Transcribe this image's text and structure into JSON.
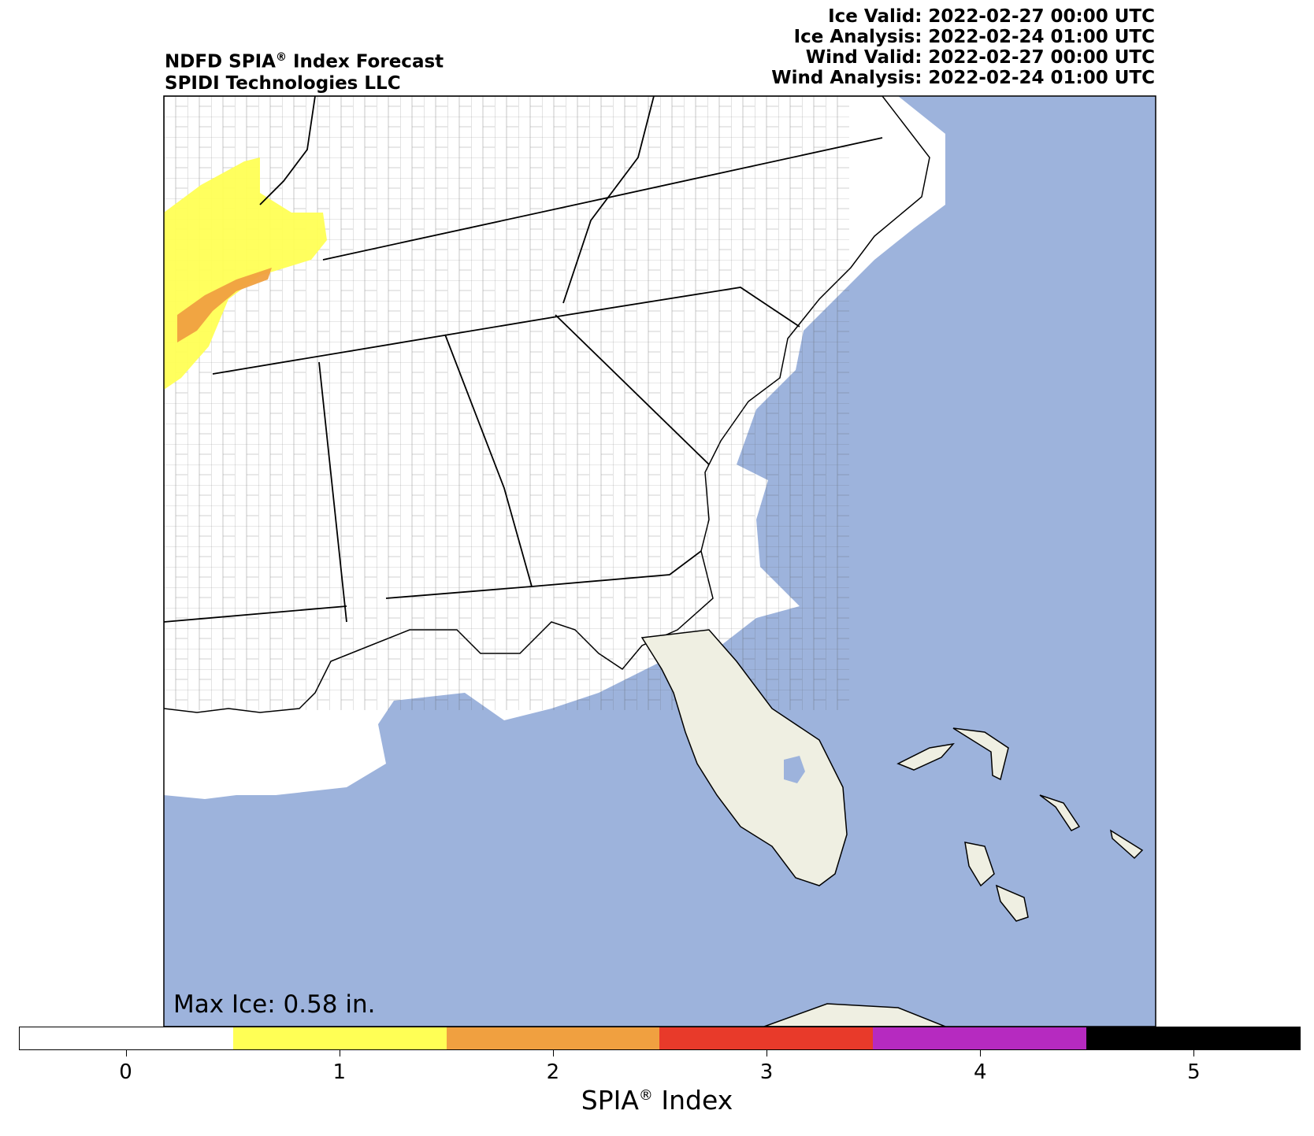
{
  "title": {
    "line1_prefix": "NDFD SPIA",
    "line1_mark": "®",
    "line1_suffix": " Index Forecast",
    "line2": "SPIDI Technologies LLC"
  },
  "validity": {
    "ice_valid": "Ice Valid: 2022-02-27 00:00 UTC",
    "ice_analysis": "Ice Analysis: 2022-02-24 01:00 UTC",
    "wind_valid": "Wind Valid: 2022-02-27 00:00 UTC",
    "wind_analysis": "Wind Analysis: 2022-02-24 01:00 UTC"
  },
  "max_ice": "Max Ice: 0.58 in.",
  "colorbar": {
    "label_prefix": "SPIA",
    "label_mark": "®",
    "label_suffix": " Index",
    "ticks": [
      "0",
      "1",
      "2",
      "3",
      "4",
      "5"
    ],
    "colors": [
      "#ffffff",
      "#ffff55",
      "#f0a040",
      "#e83a2a",
      "#b62ac0",
      "#000000"
    ]
  },
  "map_colors": {
    "water": "#9db3dc",
    "land": "#ffffff",
    "florida_land": "#efefe2",
    "level_1": "#ffff55",
    "level_2": "#f0a040"
  }
}
